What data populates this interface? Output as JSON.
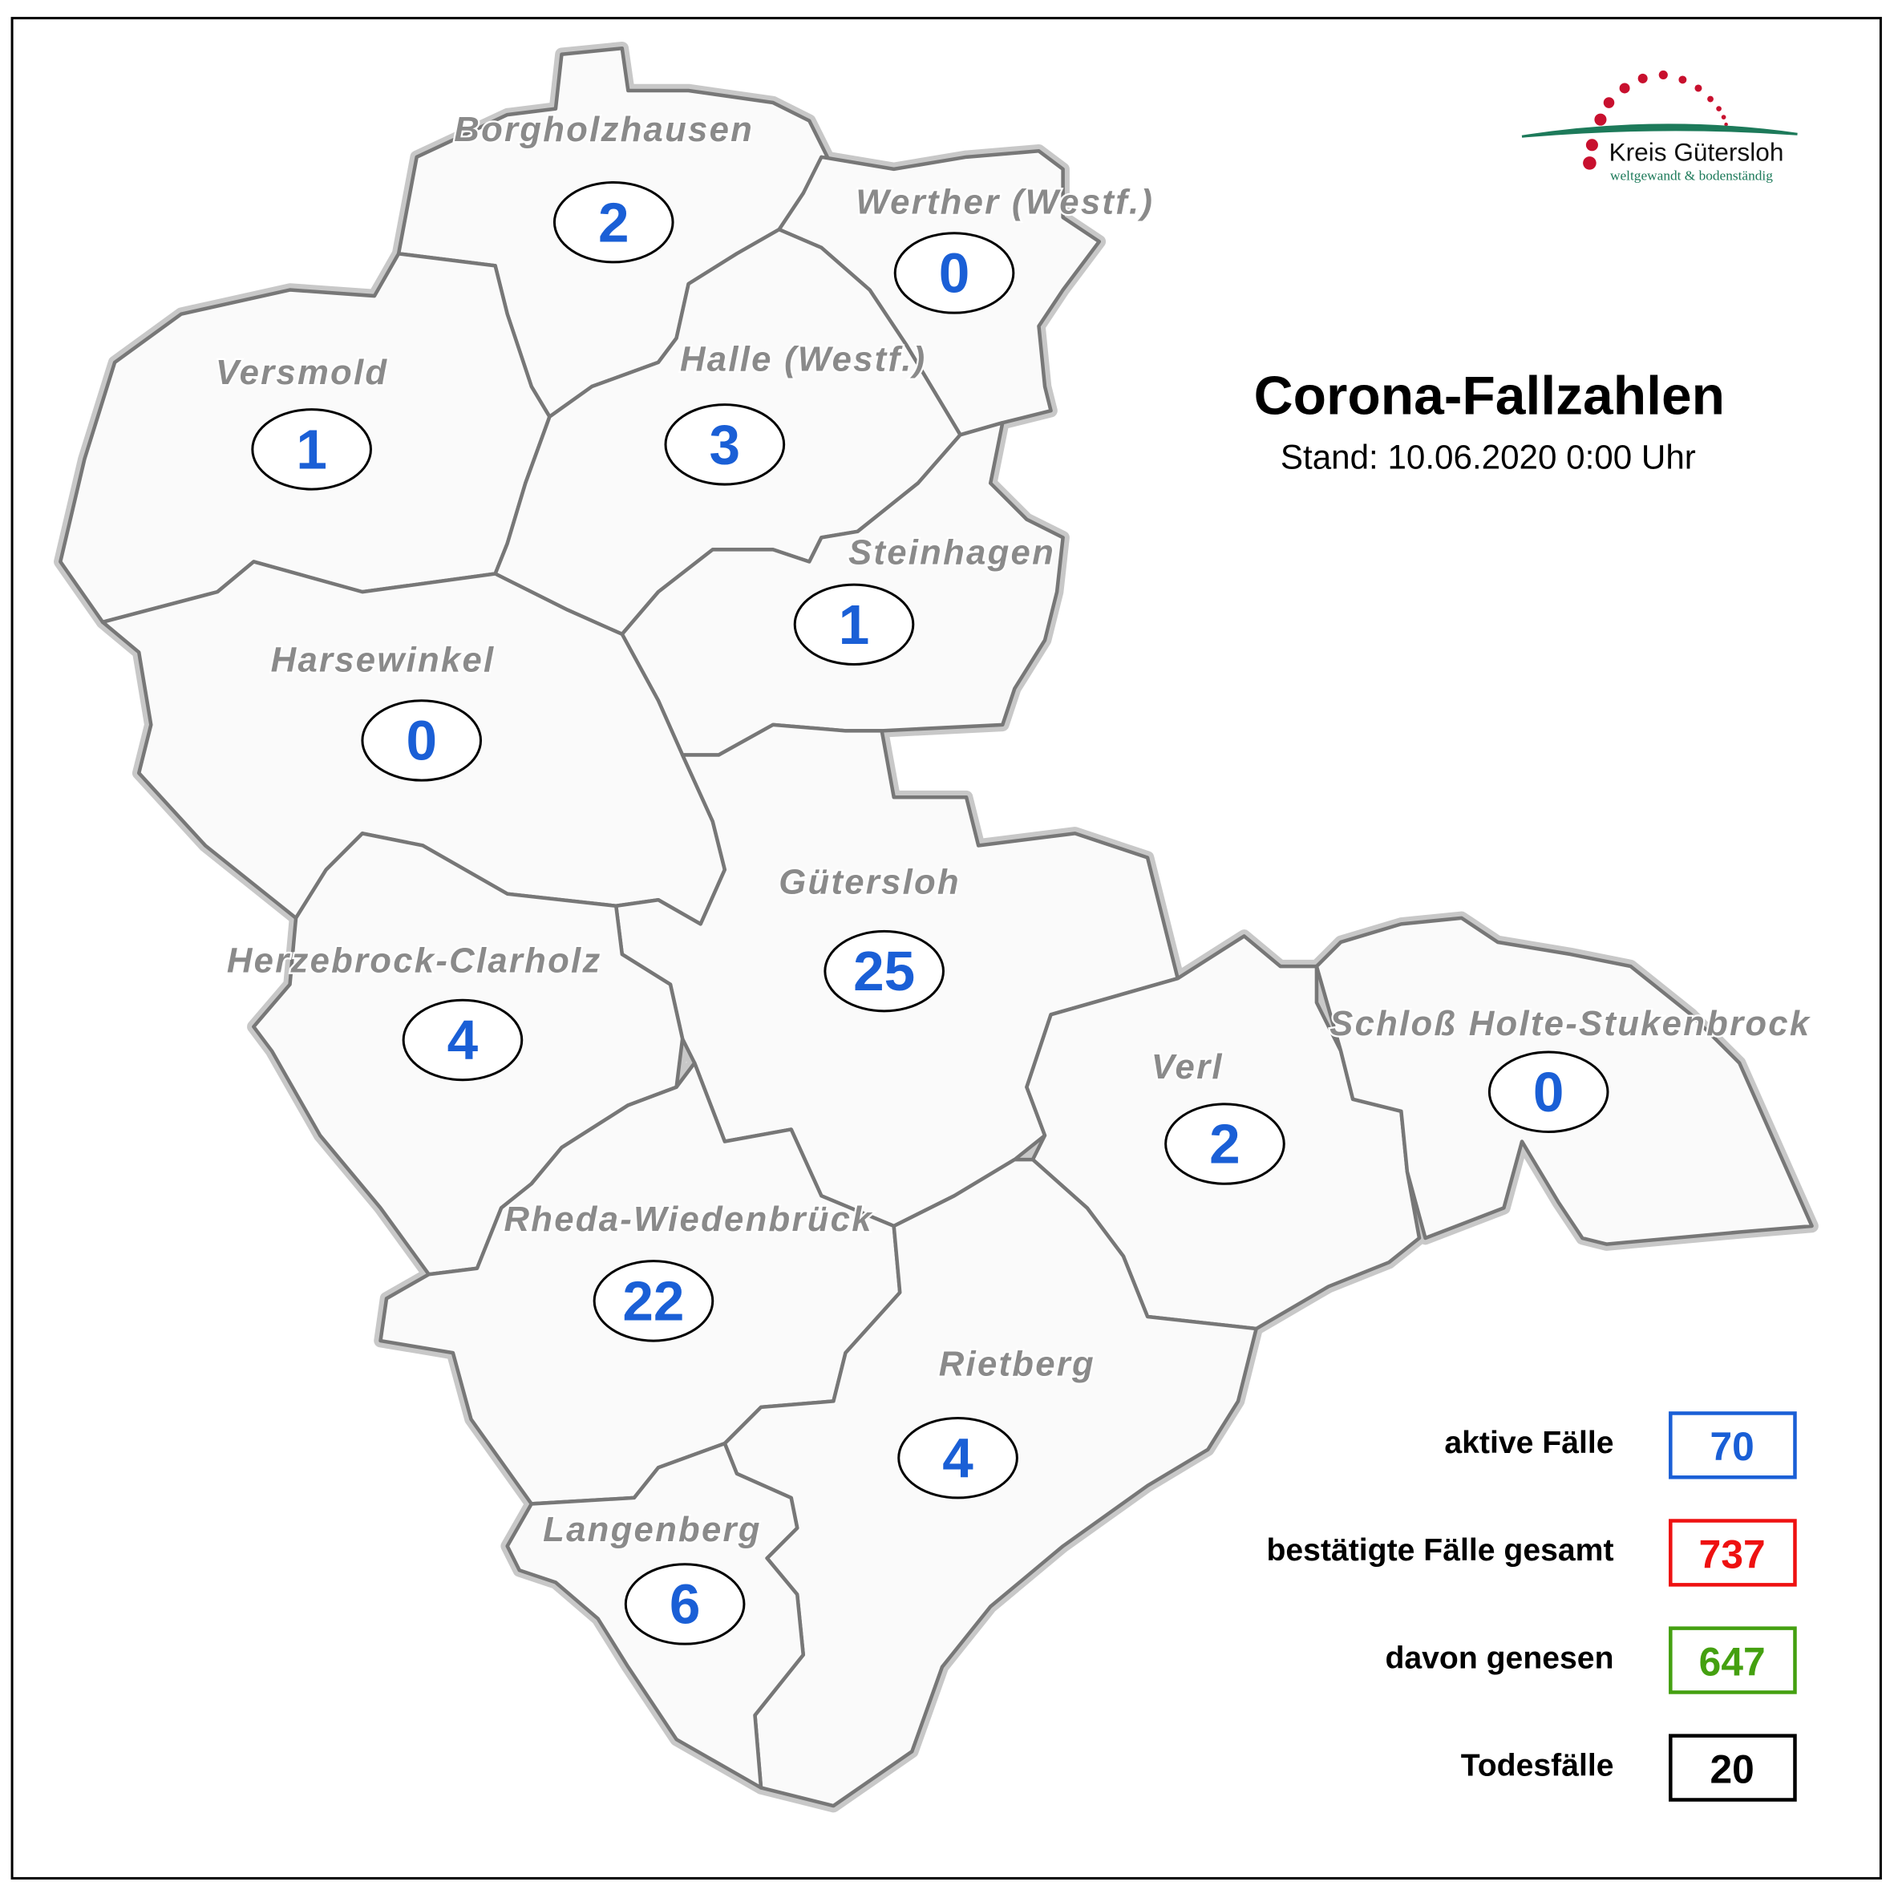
{
  "title": "Corona-Fallzahlen",
  "subtitle": "Stand: 10.06.2020 0:00 Uhr",
  "logo": {
    "name": "Kreis Gütersloh",
    "tagline": "weltgewandt & bodenständig",
    "dot_color": "#c8102e",
    "arc_color": "#1d7a5a"
  },
  "colors": {
    "count": "#1a5fd6",
    "label": "#8a8a8a",
    "region_fill": "#fafafa",
    "border": "#777777",
    "halo": "#c8c8c8"
  },
  "municipalities": [
    {
      "name": "Borgholzhausen",
      "active": "2"
    },
    {
      "name": "Werther (Westf.)",
      "active": "0"
    },
    {
      "name": "Versmold",
      "active": "1"
    },
    {
      "name": "Halle (Westf.)",
      "active": "3"
    },
    {
      "name": "Steinhagen",
      "active": "1"
    },
    {
      "name": "Harsewinkel",
      "active": "0"
    },
    {
      "name": "Gütersloh",
      "active": "25"
    },
    {
      "name": "Herzebrock-Clarholz",
      "active": "4"
    },
    {
      "name": "Verl",
      "active": "2"
    },
    {
      "name": "Schloß Holte-Stukenbrock",
      "active": "0"
    },
    {
      "name": "Rheda-Wiedenbrück",
      "active": "22"
    },
    {
      "name": "Rietberg",
      "active": "4"
    },
    {
      "name": "Langenberg",
      "active": "6"
    }
  ],
  "legend": [
    {
      "label": "aktive Fälle",
      "value": "70",
      "color": "#1a5fd6"
    },
    {
      "label": "bestätigte Fälle gesamt",
      "value": "737",
      "color": "#ee1111"
    },
    {
      "label": "davon genesen",
      "value": "647",
      "color": "#44a010"
    },
    {
      "label": "Todesfälle",
      "value": "20",
      "color": "#000000"
    }
  ]
}
